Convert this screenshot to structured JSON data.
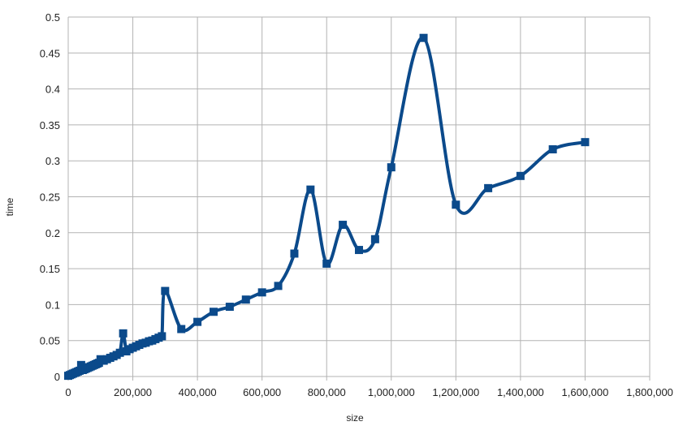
{
  "chart_data": {
    "type": "line",
    "title": "",
    "xlabel": "size",
    "ylabel": "time",
    "xlim": [
      0,
      1800000
    ],
    "ylim": [
      0,
      0.5
    ],
    "x_ticks": [
      "0",
      "200,000",
      "400,000",
      "600,000",
      "800,000",
      "1,000,000",
      "1,200,000",
      "1,400,000",
      "1,600,000",
      "1,800,000"
    ],
    "y_ticks": [
      "0",
      "0.05",
      "0.1",
      "0.15",
      "0.2",
      "0.25",
      "0.3",
      "0.35",
      "0.4",
      "0.45",
      "0.5"
    ],
    "grid": true,
    "legend": "none",
    "series_color": "#0b4a8b",
    "series": [
      {
        "x": [
          0,
          5000,
          10000,
          15000,
          20000,
          25000,
          30000,
          35000,
          40000,
          45000,
          50000,
          55000,
          60000,
          65000,
          70000,
          75000,
          80000,
          85000,
          90000,
          95000,
          100000,
          110000,
          120000,
          130000,
          140000,
          150000,
          160000,
          170000,
          180000,
          190000,
          200000,
          210000,
          220000,
          230000,
          240000,
          250000,
          260000,
          270000,
          280000,
          290000,
          300000,
          350000,
          400000,
          450000,
          500000,
          550000,
          600000,
          650000,
          700000,
          750000,
          800000,
          850000,
          900000,
          950000,
          1000000,
          1100000,
          1200000,
          1300000,
          1400000,
          1500000,
          1600000
        ],
        "y": [
          0.001,
          0.002,
          0.003,
          0.004,
          0.005,
          0.006,
          0.007,
          0.008,
          0.016,
          0.009,
          0.01,
          0.011,
          0.012,
          0.013,
          0.014,
          0.015,
          0.016,
          0.017,
          0.018,
          0.019,
          0.024,
          0.022,
          0.024,
          0.026,
          0.028,
          0.03,
          0.033,
          0.06,
          0.035,
          0.038,
          0.04,
          0.042,
          0.044,
          0.046,
          0.047,
          0.049,
          0.05,
          0.052,
          0.054,
          0.056,
          0.119,
          0.066,
          0.076,
          0.09,
          0.097,
          0.107,
          0.117,
          0.126,
          0.171,
          0.26,
          0.157,
          0.211,
          0.176,
          0.191,
          0.291,
          0.471,
          0.239,
          0.262,
          0.279,
          0.316,
          0.326
        ]
      }
    ]
  }
}
